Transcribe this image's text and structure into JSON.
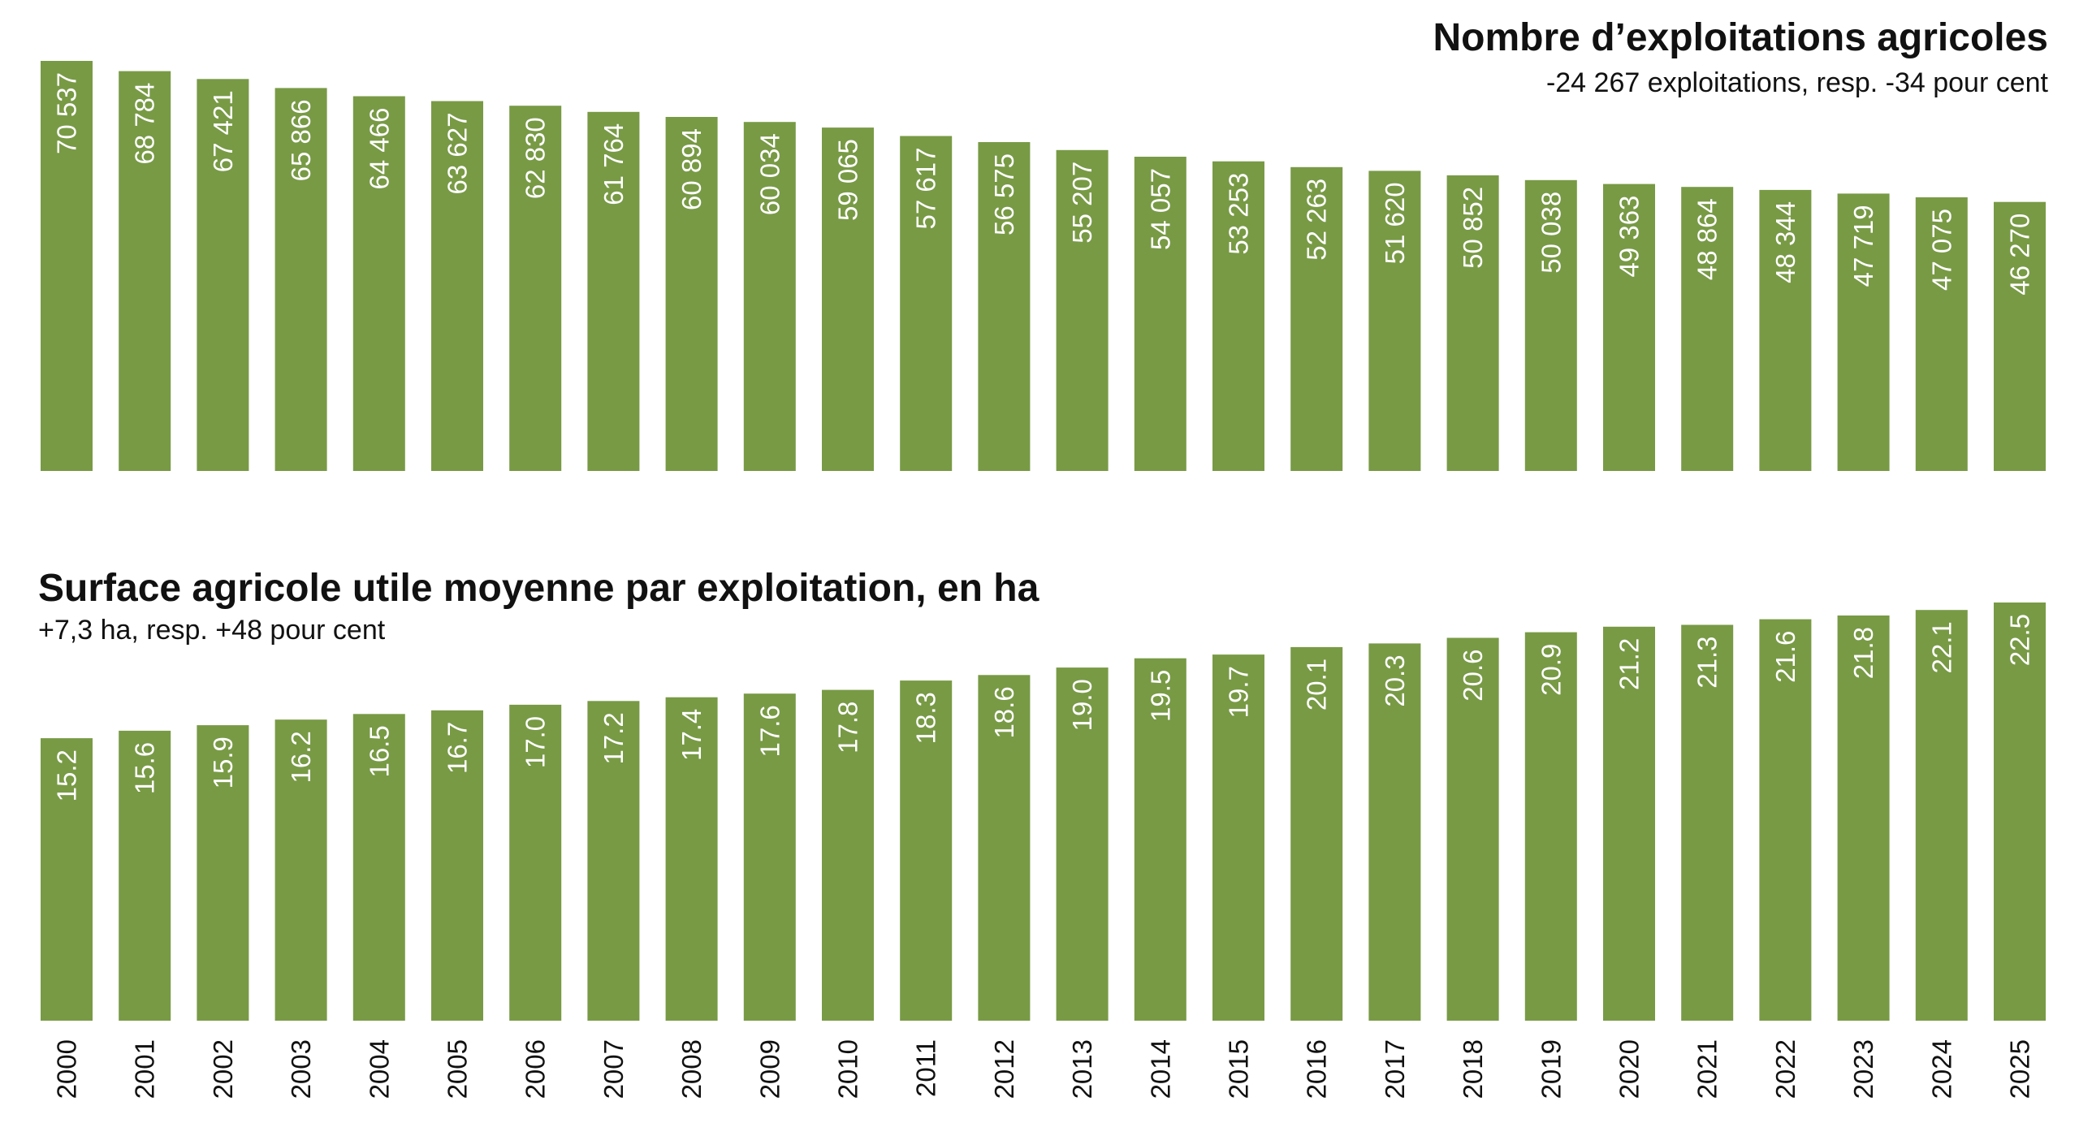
{
  "chart_data": [
    {
      "type": "bar",
      "title": "Nombre d’exploitations agricoles",
      "subtitle": "-24 267 exploitations, resp. -34 pour cent",
      "categories": [
        "2000",
        "2001",
        "2002",
        "2003",
        "2004",
        "2005",
        "2006",
        "2007",
        "2008",
        "2009",
        "2010",
        "2011",
        "2012",
        "2013",
        "2014",
        "2015",
        "2016",
        "2017",
        "2018",
        "2019",
        "2020",
        "2021",
        "2022",
        "2023",
        "2024",
        "2025"
      ],
      "values": [
        70537,
        68784,
        67421,
        65866,
        64466,
        63627,
        62830,
        61764,
        60894,
        60034,
        59065,
        57617,
        56575,
        55207,
        54057,
        53253,
        52263,
        51620,
        50852,
        50038,
        49363,
        48864,
        48344,
        47719,
        47075,
        46270
      ],
      "value_labels": [
        "70 537",
        "68 784",
        "67 421",
        "65 866",
        "64 466",
        "63 627",
        "62 830",
        "61 764",
        "60 894",
        "60 034",
        "59 065",
        "57 617",
        "56 575",
        "55 207",
        "54 057",
        "53 253",
        "52 263",
        "51 620",
        "50 852",
        "50 038",
        "49 363",
        "48 864",
        "48 344",
        "47 719",
        "47 075",
        "46 270"
      ],
      "ylim": [
        0,
        70537
      ],
      "grid": false,
      "legend": "none",
      "bar_color": "#789A45",
      "title_position": "top-right"
    },
    {
      "type": "bar",
      "title": "Surface agricole utile moyenne par exploitation, en ha",
      "subtitle": "+7,3 ha, resp. +48 pour cent",
      "categories": [
        "2000",
        "2001",
        "2002",
        "2003",
        "2004",
        "2005",
        "2006",
        "2007",
        "2008",
        "2009",
        "2010",
        "2011",
        "2012",
        "2013",
        "2014",
        "2015",
        "2016",
        "2017",
        "2018",
        "2019",
        "2020",
        "2021",
        "2022",
        "2023",
        "2024",
        "2025"
      ],
      "values": [
        15.2,
        15.6,
        15.9,
        16.2,
        16.5,
        16.7,
        17.0,
        17.2,
        17.4,
        17.6,
        17.8,
        18.3,
        18.6,
        19.0,
        19.5,
        19.7,
        20.1,
        20.3,
        20.6,
        20.9,
        21.2,
        21.3,
        21.6,
        21.8,
        22.1,
        22.5
      ],
      "value_labels": [
        "15.2",
        "15.6",
        "15.9",
        "16.2",
        "16.5",
        "16.7",
        "17.0",
        "17.2",
        "17.4",
        "17.6",
        "17.8",
        "18.3",
        "18.6",
        "19.0",
        "19.5",
        "19.7",
        "20.1",
        "20.3",
        "20.6",
        "20.9",
        "21.2",
        "21.3",
        "21.6",
        "21.8",
        "22.1",
        "22.5"
      ],
      "ylim": [
        0,
        22.5
      ],
      "grid": false,
      "legend": "none",
      "bar_color": "#789A45",
      "title_position": "top-left"
    }
  ]
}
